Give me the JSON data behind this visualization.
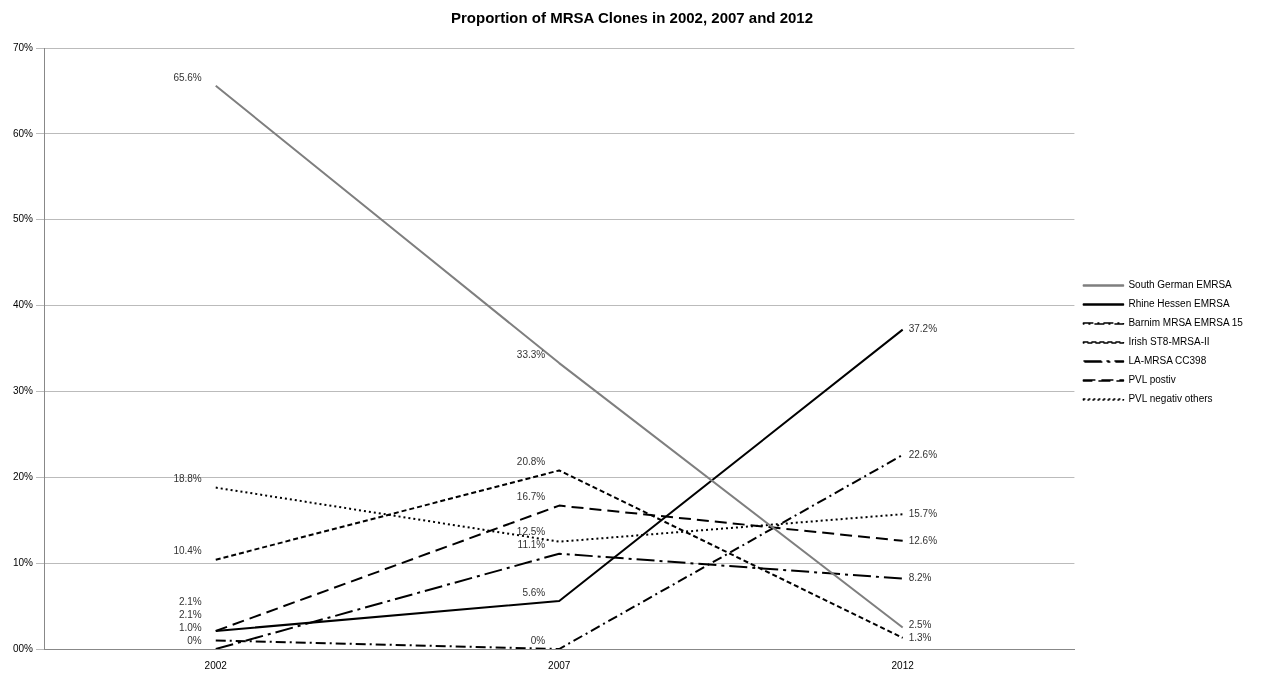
{
  "chart_data": {
    "type": "line",
    "title": "Proportion of MRSA Clones in 2002, 2007 and 2012",
    "categories": [
      "2002",
      "2007",
      "2012"
    ],
    "series": [
      {
        "name": "South German EMRSA",
        "color": "#7f7f7f",
        "line_style": "solid",
        "values": [
          65.6,
          33.3,
          2.5
        ],
        "value_labels": [
          "65.6%",
          "33.3%",
          "2.5%"
        ]
      },
      {
        "name": "Rhine Hessen EMRSA",
        "color": "#000000",
        "line_style": "solid",
        "values": [
          2.1,
          5.6,
          37.2
        ],
        "value_labels": [
          "2.1%",
          "5.6%",
          "37.2%"
        ]
      },
      {
        "name": "Barnim MRSA EMRSA 15",
        "color": "#000000",
        "line_style": "dashdot",
        "values": [
          1.0,
          0,
          22.6
        ],
        "value_labels": [
          "1.0%",
          "0%",
          "22.6%"
        ]
      },
      {
        "name": "Irish ST8-MRSA-II",
        "color": "#000000",
        "line_style": "dashed",
        "values": [
          10.4,
          20.8,
          1.3
        ],
        "value_labels": [
          "10.4%",
          "20.8%",
          "1.3%"
        ]
      },
      {
        "name": "LA-MRSA CC398",
        "color": "#000000",
        "line_style": "longdashdot",
        "values": [
          0,
          11.1,
          8.2
        ],
        "value_labels": [
          "0%",
          "11.1%",
          "8.2%"
        ]
      },
      {
        "name": "PVL postiv",
        "color": "#000000",
        "line_style": "longdashed",
        "values": [
          2.1,
          16.7,
          12.6
        ],
        "value_labels": [
          "2.1%",
          "16.7%",
          "12.6%"
        ]
      },
      {
        "name": "PVL negativ others",
        "color": "#000000",
        "line_style": "dotted",
        "values": [
          18.8,
          12.5,
          15.7
        ],
        "value_labels": [
          "18.8%",
          "12.5%",
          "15.7%"
        ]
      }
    ],
    "ylim": [
      0,
      70
    ],
    "yticks": [
      {
        "value": 0,
        "label": "00%"
      },
      {
        "value": 10,
        "label": "10%"
      },
      {
        "value": 20,
        "label": "20%"
      },
      {
        "value": 30,
        "label": "30%"
      },
      {
        "value": 40,
        "label": "40%"
      },
      {
        "value": 50,
        "label": "50%"
      },
      {
        "value": 60,
        "label": "60%"
      },
      {
        "value": 70,
        "label": "70%"
      }
    ],
    "grid": "y",
    "legend": "right",
    "marker": "none"
  }
}
